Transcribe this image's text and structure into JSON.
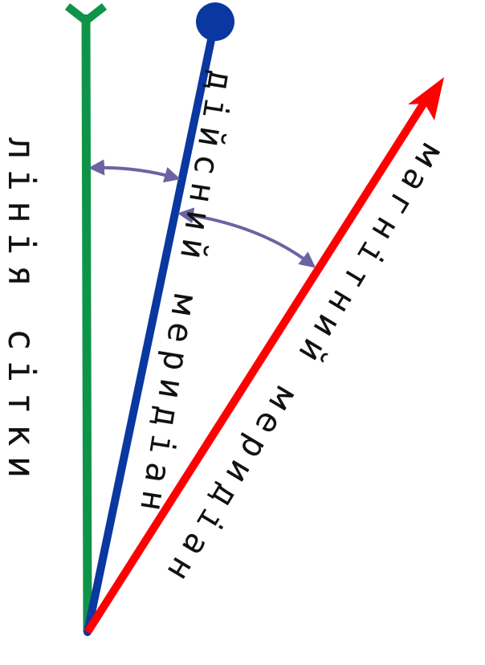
{
  "lines": {
    "grid": {
      "label": "лінія сітки",
      "color": "#0e9448"
    },
    "true_meridian": {
      "label": "дійсний меридіан",
      "color": "#0a37a0"
    },
    "magnetic_meridian": {
      "label": "магнітний меридіан",
      "color": "#ff0000"
    }
  },
  "angle_arc_color": "#6c63a3"
}
